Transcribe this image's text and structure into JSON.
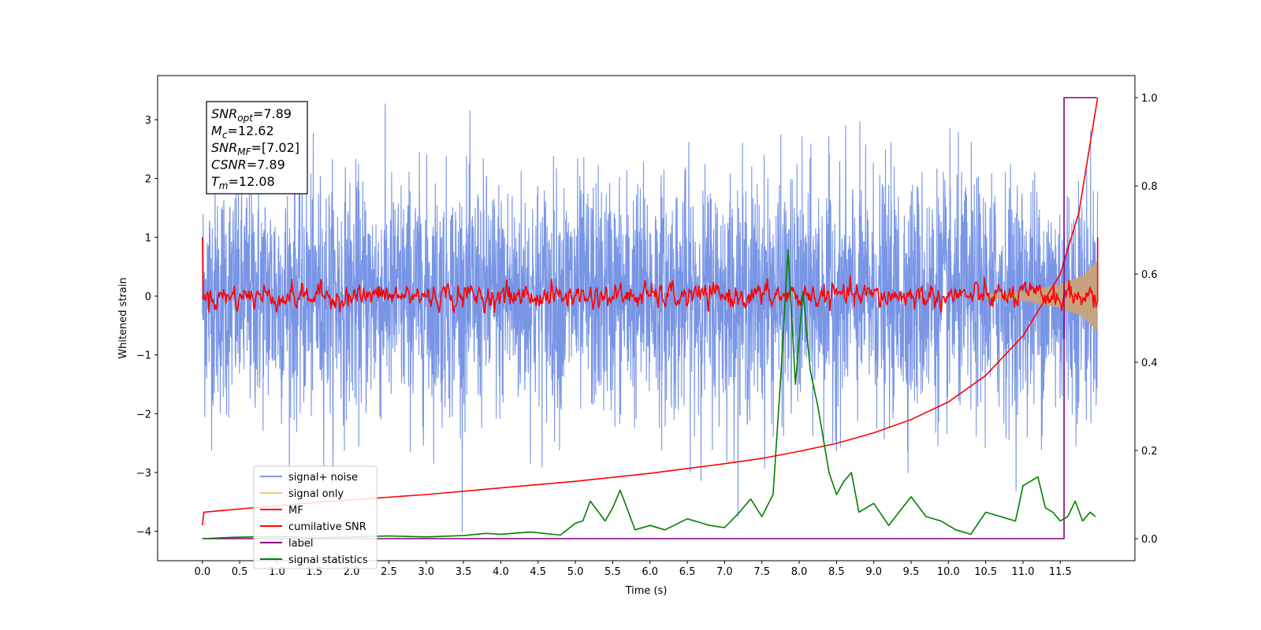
{
  "chart_data": {
    "type": "line",
    "xlabel": "Time (s)",
    "ylabel": "Whitened strain",
    "xlim": [
      -0.6,
      12.5
    ],
    "ylim": [
      -4.5,
      3.75
    ],
    "y2lim": [
      -0.05,
      1.05
    ],
    "xticks": [
      0.0,
      0.5,
      1.0,
      1.5,
      2.0,
      2.5,
      3.0,
      3.5,
      4.0,
      4.5,
      5.0,
      5.5,
      6.0,
      6.5,
      7.0,
      7.5,
      8.0,
      8.5,
      9.0,
      9.5,
      10.0,
      10.5,
      11.0,
      11.5
    ],
    "xtick_labels": [
      "0.0",
      "0.5",
      "1.0",
      "1.5",
      "2.0",
      "2.5",
      "3.0",
      "3.5",
      "4.0",
      "4.5",
      "5.0",
      "5.5",
      "6.0",
      "6.5",
      "7.0",
      "7.5",
      "8.0",
      "8.5",
      "9.0",
      "9.5",
      "10.0",
      "10.5",
      "11.0",
      "11.5"
    ],
    "yticks": [
      -4,
      -3,
      -2,
      -1,
      0,
      1,
      2,
      3
    ],
    "ytick_labels": [
      "−4",
      "−3",
      "−2",
      "−1",
      "0",
      "1",
      "2",
      "3"
    ],
    "y2ticks": [
      0.0,
      0.2,
      0.4,
      0.6,
      0.8,
      1.0
    ],
    "y2tick_labels": [
      "0.0",
      "0.2",
      "0.4",
      "0.6",
      "0.8",
      "1.0"
    ],
    "grid": false,
    "legend_position": "lower-left",
    "annotation_box": {
      "position": "top-left",
      "lines": [
        {
          "sym": "SNR",
          "sub": "opt",
          "val": "=7.89"
        },
        {
          "sym": "M",
          "sub": "c",
          "val": "=12.62"
        },
        {
          "sym": "SNR",
          "sub": "MF",
          "val": "=[7.02]"
        },
        {
          "sym": "CSNR",
          "sub": "",
          "val": "=7.89"
        },
        {
          "sym": "T",
          "sub": "m",
          "val": "=12.08"
        }
      ]
    },
    "series": [
      {
        "name": "signal+ noise",
        "axis": "left",
        "color": "#7895e6",
        "style": "dense noise band",
        "x_range": [
          0.0,
          12.0
        ],
        "typical_envelope": [
          -1.6,
          1.6
        ],
        "extreme_range": [
          -4.15,
          3.35
        ]
      },
      {
        "name": "signal only",
        "axis": "left",
        "color": "#f5c77e",
        "style": "chirp envelope (filled)",
        "x": [
          10.5,
          11.0,
          11.5,
          11.8,
          12.0
        ],
        "amplitude": [
          0.03,
          0.08,
          0.2,
          0.35,
          0.6
        ]
      },
      {
        "name": "MF",
        "axis": "left",
        "color": "#ff0000",
        "style": "noisy line around zero",
        "x_range": [
          0.0,
          12.0
        ],
        "start_value": 1.0,
        "end_value": 1.0,
        "typical_amplitude": 0.3
      },
      {
        "name": "cumilative SNR",
        "axis": "right",
        "color": "#ff0000",
        "x": [
          0.0,
          0.02,
          1.0,
          2.0,
          3.0,
          4.0,
          5.0,
          6.0,
          7.0,
          7.5,
          8.0,
          8.5,
          9.0,
          9.5,
          10.0,
          10.5,
          11.0,
          11.5,
          11.75,
          12.0
        ],
        "y": [
          0.03,
          0.06,
          0.075,
          0.088,
          0.1,
          0.115,
          0.13,
          0.148,
          0.17,
          0.182,
          0.198,
          0.216,
          0.24,
          0.27,
          0.31,
          0.37,
          0.46,
          0.6,
          0.74,
          1.0
        ]
      },
      {
        "name": "label",
        "axis": "right",
        "color": "#800080",
        "x": [
          0.0,
          11.5,
          11.5,
          11.55,
          11.55,
          11.99
        ],
        "y": [
          0.0,
          0.0,
          0.0,
          0.0,
          1.0,
          1.0
        ]
      },
      {
        "name": "signal statistics",
        "axis": "right",
        "color": "#008000",
        "x": [
          0.0,
          0.4,
          1.0,
          1.5,
          2.0,
          2.5,
          3.0,
          3.5,
          3.8,
          4.0,
          4.4,
          4.8,
          5.0,
          5.1,
          5.2,
          5.4,
          5.5,
          5.6,
          5.8,
          6.0,
          6.2,
          6.5,
          6.8,
          7.0,
          7.2,
          7.35,
          7.5,
          7.65,
          7.75,
          7.85,
          7.95,
          8.05,
          8.15,
          8.25,
          8.4,
          8.5,
          8.6,
          8.7,
          8.8,
          9.0,
          9.2,
          9.5,
          9.7,
          9.9,
          10.1,
          10.3,
          10.5,
          10.7,
          10.9,
          11.0,
          11.1,
          11.2,
          11.3,
          11.4,
          11.5,
          11.6,
          11.7,
          11.8,
          11.9,
          11.97
        ],
        "y": [
          0.0,
          0.003,
          0.005,
          0.002,
          0.004,
          0.006,
          0.004,
          0.007,
          0.012,
          0.01,
          0.015,
          0.008,
          0.035,
          0.04,
          0.085,
          0.04,
          0.07,
          0.11,
          0.02,
          0.03,
          0.02,
          0.045,
          0.03,
          0.025,
          0.06,
          0.09,
          0.05,
          0.1,
          0.36,
          0.655,
          0.35,
          0.56,
          0.38,
          0.3,
          0.15,
          0.1,
          0.13,
          0.15,
          0.06,
          0.08,
          0.03,
          0.095,
          0.05,
          0.04,
          0.02,
          0.01,
          0.06,
          0.05,
          0.04,
          0.12,
          0.13,
          0.14,
          0.07,
          0.06,
          0.04,
          0.05,
          0.085,
          0.04,
          0.06,
          0.05
        ]
      }
    ]
  }
}
